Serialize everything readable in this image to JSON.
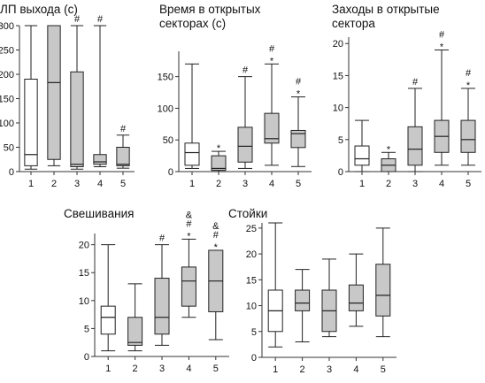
{
  "chart_data": [
    {
      "type": "boxplot",
      "title": "ЛП выхода (с)",
      "categories": [
        "1",
        "2",
        "3",
        "4",
        "5"
      ],
      "ylim": [
        0,
        300
      ],
      "yticks": [
        0,
        50,
        100,
        150,
        200,
        250,
        300
      ],
      "boxes": [
        {
          "category": "1",
          "min": 5,
          "q1": 12,
          "median": 35,
          "q3": 190,
          "max": 300,
          "fill": "#ffffff",
          "marks": ""
        },
        {
          "category": "2",
          "min": 12,
          "q1": 25,
          "median": 183,
          "q3": 300,
          "max": 300,
          "fill": "#c8c8c8",
          "marks": ""
        },
        {
          "category": "3",
          "min": 5,
          "q1": 10,
          "median": 15,
          "q3": 205,
          "max": 300,
          "fill": "#c8c8c8",
          "marks": "#"
        },
        {
          "category": "4",
          "min": 10,
          "q1": 15,
          "median": 20,
          "q3": 35,
          "max": 300,
          "fill": "#c8c8c8",
          "marks": "#"
        },
        {
          "category": "5",
          "min": 7,
          "q1": 12,
          "median": 15,
          "q3": 50,
          "max": 75,
          "fill": "#c8c8c8",
          "marks": "#"
        }
      ]
    },
    {
      "type": "boxplot",
      "title": "Время в открытых секторах (с)",
      "title_lines": [
        "Время в открытых",
        "секторах (с)"
      ],
      "categories": [
        "1",
        "2",
        "3",
        "4",
        "5"
      ],
      "ylim": [
        0,
        190
      ],
      "yticks": [
        0,
        50,
        100,
        150
      ],
      "boxes": [
        {
          "category": "1",
          "min": 5,
          "q1": 10,
          "median": 30,
          "q3": 45,
          "max": 170,
          "fill": "#ffffff",
          "marks": ""
        },
        {
          "category": "2",
          "min": 0,
          "q1": 2,
          "median": 5,
          "q3": 25,
          "max": 32,
          "fill": "#c8c8c8",
          "marks": "*"
        },
        {
          "category": "3",
          "min": 5,
          "q1": 15,
          "median": 40,
          "q3": 70,
          "max": 150,
          "fill": "#c8c8c8",
          "marks": "#"
        },
        {
          "category": "4",
          "min": 10,
          "q1": 45,
          "median": 52,
          "q3": 92,
          "max": 170,
          "fill": "#c8c8c8",
          "marks": "#*"
        },
        {
          "category": "5",
          "min": 8,
          "q1": 38,
          "median": 60,
          "q3": 65,
          "max": 118,
          "fill": "#c8c8c8",
          "marks": "#*"
        }
      ]
    },
    {
      "type": "boxplot",
      "title": "Заходы в открытые сектора",
      "title_lines": [
        "Заходы в открытые",
        "сектора"
      ],
      "categories": [
        "1",
        "2",
        "3",
        "4",
        "5"
      ],
      "ylim": [
        0,
        21
      ],
      "yticks": [
        0,
        5,
        10,
        15,
        20
      ],
      "boxes": [
        {
          "category": "1",
          "min": 0,
          "q1": 1,
          "median": 2,
          "q3": 4,
          "max": 8,
          "fill": "#ffffff",
          "marks": ""
        },
        {
          "category": "2",
          "min": 0,
          "q1": 0,
          "median": 1,
          "q3": 2,
          "max": 3,
          "fill": "#c8c8c8",
          "marks": "*"
        },
        {
          "category": "3",
          "min": 0,
          "q1": 1,
          "median": 3.5,
          "q3": 7,
          "max": 13,
          "fill": "#c8c8c8",
          "marks": "#"
        },
        {
          "category": "4",
          "min": 1,
          "q1": 3,
          "median": 5.5,
          "q3": 8,
          "max": 19,
          "fill": "#c8c8c8",
          "marks": "#*"
        },
        {
          "category": "5",
          "min": 1,
          "q1": 3,
          "median": 5,
          "q3": 8,
          "max": 13,
          "fill": "#c8c8c8",
          "marks": "#*"
        }
      ]
    },
    {
      "type": "boxplot",
      "title": "Свешивания",
      "categories": [
        "1",
        "2",
        "3",
        "4",
        "5"
      ],
      "ylim": [
        0,
        22
      ],
      "yticks": [
        0,
        5,
        10,
        15,
        20
      ],
      "boxes": [
        {
          "category": "1",
          "min": 1,
          "q1": 4,
          "median": 7,
          "q3": 9,
          "max": 20,
          "fill": "#ffffff",
          "marks": ""
        },
        {
          "category": "2",
          "min": 1,
          "q1": 2,
          "median": 2.5,
          "q3": 7,
          "max": 13,
          "fill": "#c8c8c8",
          "marks": ""
        },
        {
          "category": "3",
          "min": 2,
          "q1": 4,
          "median": 7,
          "q3": 14,
          "max": 20,
          "fill": "#c8c8c8",
          "marks": "#"
        },
        {
          "category": "4",
          "min": 7,
          "q1": 9,
          "median": 13.5,
          "q3": 16,
          "max": 21,
          "fill": "#c8c8c8",
          "marks": "&#*"
        },
        {
          "category": "5",
          "min": 3,
          "q1": 8,
          "median": 13.5,
          "q3": 19,
          "max": 19,
          "fill": "#c8c8c8",
          "marks": "&#*"
        }
      ]
    },
    {
      "type": "boxplot",
      "title": "Стойки",
      "categories": [
        "1",
        "2",
        "3",
        "4",
        "5"
      ],
      "ylim": [
        0,
        26
      ],
      "yticks": [
        0,
        5,
        10,
        15,
        20,
        25
      ],
      "boxes": [
        {
          "category": "1",
          "min": 2,
          "q1": 5,
          "median": 9,
          "q3": 13,
          "max": 26,
          "fill": "#ffffff",
          "marks": ""
        },
        {
          "category": "2",
          "min": 3,
          "q1": 9,
          "median": 10.5,
          "q3": 13,
          "max": 17,
          "fill": "#c8c8c8",
          "marks": ""
        },
        {
          "category": "3",
          "min": 4,
          "q1": 5,
          "median": 9,
          "q3": 13,
          "max": 19,
          "fill": "#c8c8c8",
          "marks": ""
        },
        {
          "category": "4",
          "min": 6,
          "q1": 9,
          "median": 10.5,
          "q3": 14,
          "max": 20,
          "fill": "#c8c8c8",
          "marks": ""
        },
        {
          "category": "5",
          "min": 4,
          "q1": 8,
          "median": 12,
          "q3": 18,
          "max": 25,
          "fill": "#c8c8c8",
          "marks": ""
        }
      ]
    }
  ]
}
